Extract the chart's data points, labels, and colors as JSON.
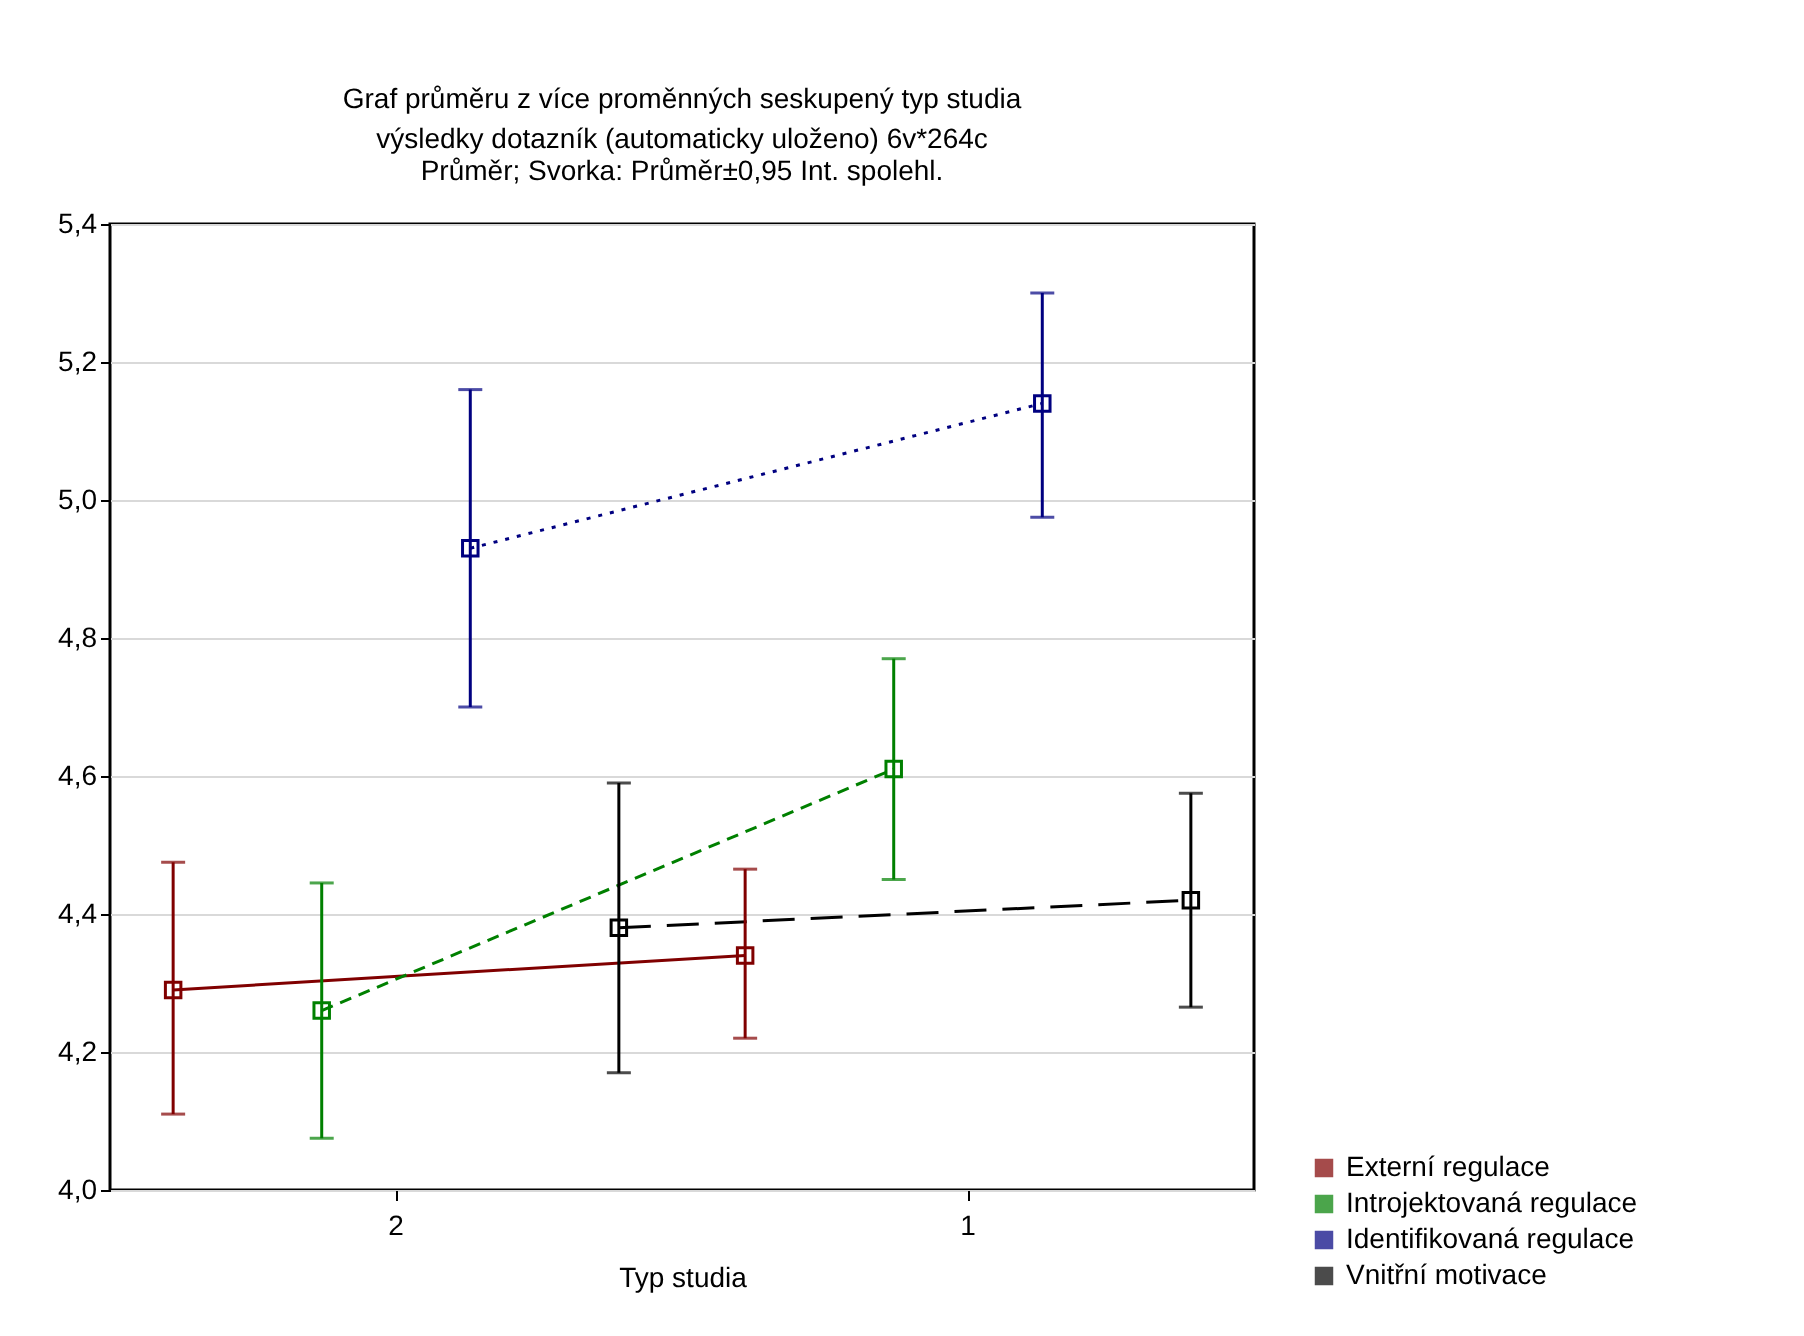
{
  "chart_data": {
    "type": "line",
    "title": "Graf průměru z více proměnných seskupený typ studia",
    "subtitle": "výsledky dotazník (automaticky uloženo) 6v*264c\nPrůměr; Svorka: Průměr±0,95 Int. spolehl.",
    "xlabel": "Typ studia",
    "categories": [
      "2",
      "1"
    ],
    "series": [
      {
        "name": "Externí regulace",
        "color": "#800000",
        "line_style": "solid",
        "values": [
          4.29,
          4.34
        ],
        "errors": [
          [
            4.11,
            4.475
          ],
          [
            4.22,
            4.465
          ]
        ]
      },
      {
        "name": "Introjektovaná regulace",
        "color": "#008000",
        "line_style": "dashed",
        "values": [
          4.26,
          4.61
        ],
        "errors": [
          [
            4.075,
            4.445
          ],
          [
            4.45,
            4.77
          ]
        ]
      },
      {
        "name": "Identifikovaná regulace",
        "color": "#000080",
        "line_style": "dotted",
        "values": [
          4.93,
          5.14
        ],
        "errors": [
          [
            4.7,
            5.16
          ],
          [
            4.975,
            5.3
          ]
        ]
      },
      {
        "name": "Vnitřní motivace",
        "color": "#000000",
        "line_style": "longdash",
        "values": [
          4.38,
          4.42
        ],
        "errors": [
          [
            4.17,
            4.59
          ],
          [
            4.265,
            4.575
          ]
        ]
      }
    ],
    "ylim": [
      4.0,
      5.4
    ],
    "yticks": [
      {
        "value": 4.0,
        "label": "4,0"
      },
      {
        "value": 4.2,
        "label": "4,2"
      },
      {
        "value": 4.4,
        "label": "4,4"
      },
      {
        "value": 4.6,
        "label": "4,6"
      },
      {
        "value": 4.8,
        "label": "4,8"
      },
      {
        "value": 5.0,
        "label": "5,0"
      },
      {
        "value": 5.2,
        "label": "5,2"
      },
      {
        "value": 5.4,
        "label": "5,4"
      }
    ],
    "grid": "y",
    "marker": "square",
    "legend": "bottom right"
  }
}
